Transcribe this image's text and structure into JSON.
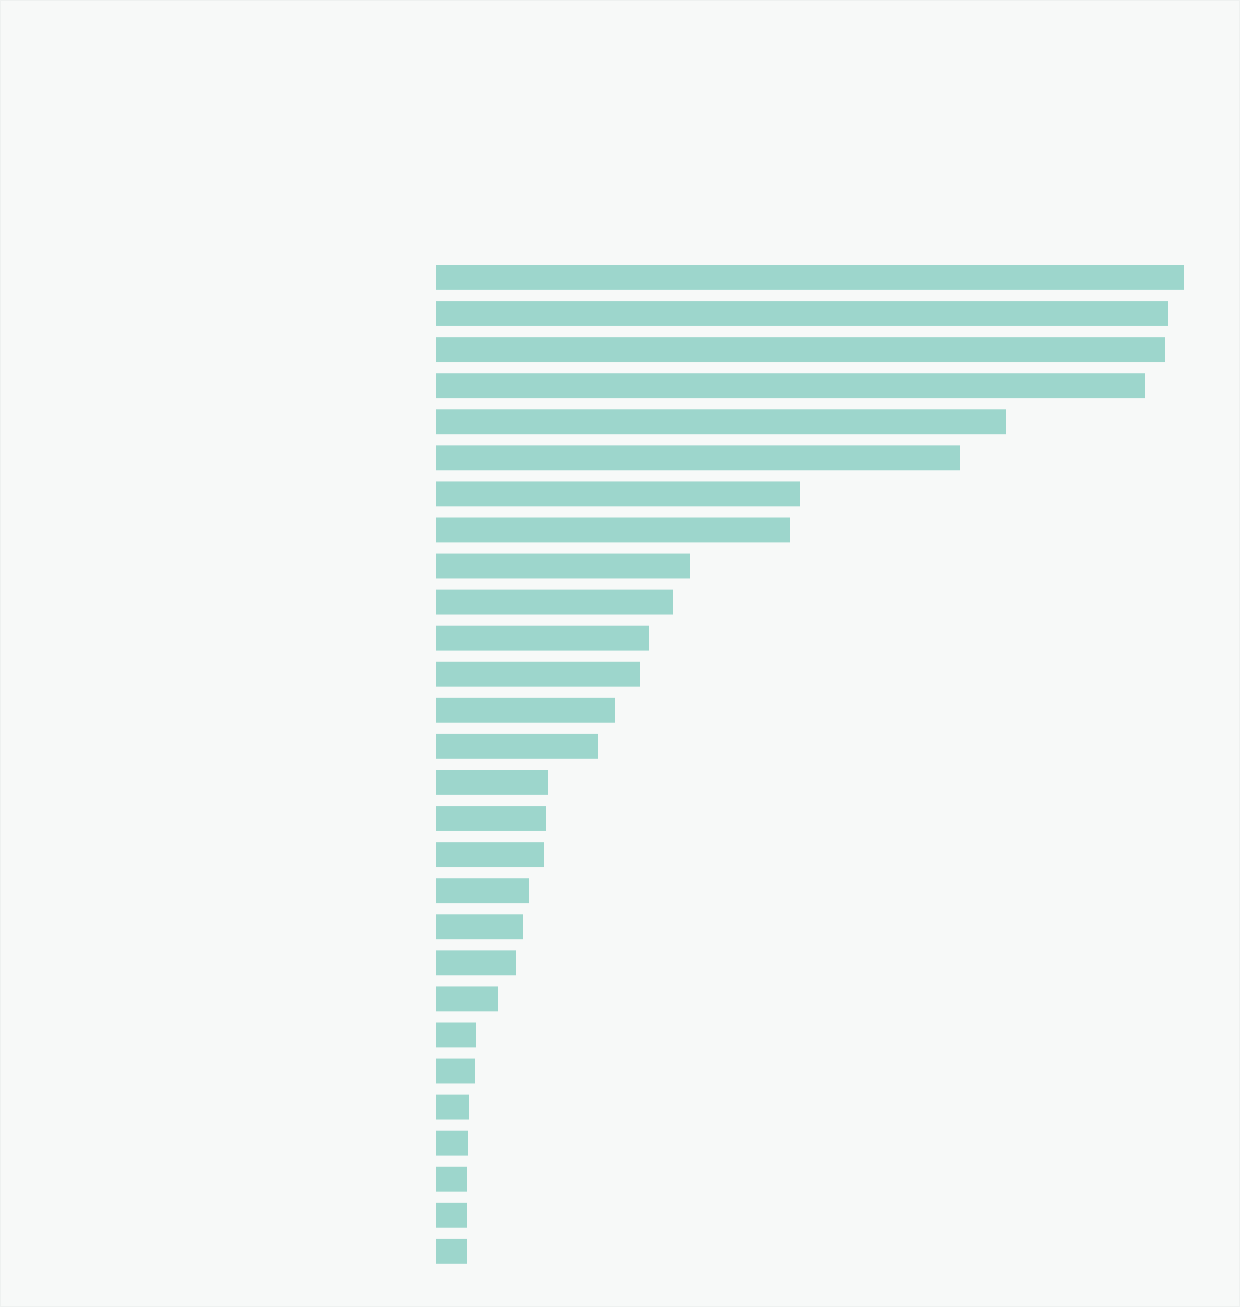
{
  "chart_data": {
    "type": "bar",
    "orientation": "horizontal",
    "color": "#9dd6cc",
    "categories": [
      null,
      null,
      null,
      null,
      null,
      null,
      null,
      null,
      null,
      null,
      null,
      null,
      null,
      null,
      null,
      null,
      null,
      null,
      null,
      null,
      null,
      null,
      null,
      null,
      null,
      null,
      null,
      null
    ],
    "values": [
      748,
      732,
      729,
      709,
      570,
      524,
      364,
      354,
      254,
      237,
      213,
      204,
      179,
      162,
      112,
      110,
      108,
      93,
      87,
      80,
      62,
      40,
      39,
      33,
      32,
      31,
      31,
      31
    ]
  }
}
